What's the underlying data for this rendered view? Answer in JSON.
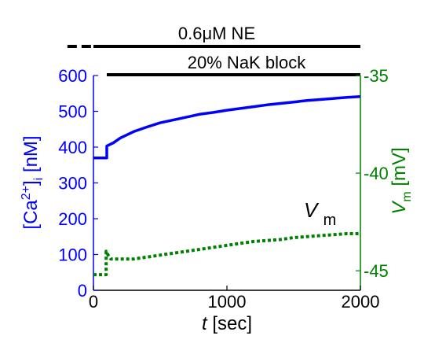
{
  "chart_data": {
    "type": "line",
    "annotations": {
      "ne_label": "0.6μM NE",
      "nak_label": "20% NaK block",
      "vm_label_main": "V",
      "vm_label_sub": "m"
    },
    "xlabel": {
      "italic": "t",
      "rest": " [sec]"
    },
    "ylabel_left": {
      "pre": "[Ca",
      "sup": "2+",
      "mid": "]",
      "sub": "i",
      "post": " [nM]"
    },
    "ylabel_right": {
      "main": "V",
      "sub": "m",
      "post": " [mV]"
    },
    "xlim": [
      0,
      2000
    ],
    "ylim_left": [
      0,
      600
    ],
    "ylim_right": [
      -46,
      -35
    ],
    "x_ticks": [
      "0",
      "1000",
      "2000"
    ],
    "y_ticks_left": [
      "0",
      "100",
      "200",
      "300",
      "400",
      "500",
      "600"
    ],
    "y_ticks_right": [
      "-35",
      "-40",
      "-45"
    ],
    "ne_bar": {
      "dashed_x": [
        -195,
        0
      ],
      "solid_x": [
        0,
        2000
      ]
    },
    "nak_bar": {
      "solid_x": [
        100,
        2000
      ]
    },
    "colors": {
      "calcium": "#0000ff",
      "vm": "#008000",
      "bars": "#000000",
      "right_axis": "#008000"
    },
    "series": [
      {
        "axis": "left",
        "style": "solid",
        "x": [
          0,
          95,
          100,
          100,
          150,
          200,
          300,
          400,
          500,
          600,
          700,
          800,
          900,
          1000,
          1100,
          1200,
          1300,
          1400,
          1500,
          1600,
          1700,
          1800,
          1900,
          2000
        ],
        "y": [
          370,
          370,
          370,
          403,
          412,
          425,
          443,
          456,
          468,
          476,
          484,
          492,
          497,
          503,
          508,
          513,
          518,
          522,
          526,
          530,
          533,
          536,
          539,
          541
        ]
      },
      {
        "axis": "right",
        "style": "dotted",
        "x": [
          0,
          95,
          95,
          110,
          130,
          160,
          200,
          300,
          400,
          500,
          600,
          700,
          800,
          900,
          1000,
          1100,
          1200,
          1300,
          1400,
          1500,
          1600,
          1700,
          1800,
          1900,
          2000
        ],
        "y": [
          -45.2,
          -45.2,
          -44.0,
          -44.2,
          -44.4,
          -44.4,
          -44.4,
          -44.4,
          -44.3,
          -44.2,
          -44.1,
          -44.0,
          -43.9,
          -43.8,
          -43.7,
          -43.6,
          -43.5,
          -43.45,
          -43.4,
          -43.3,
          -43.25,
          -43.2,
          -43.15,
          -43.1,
          -43.1
        ]
      }
    ]
  }
}
